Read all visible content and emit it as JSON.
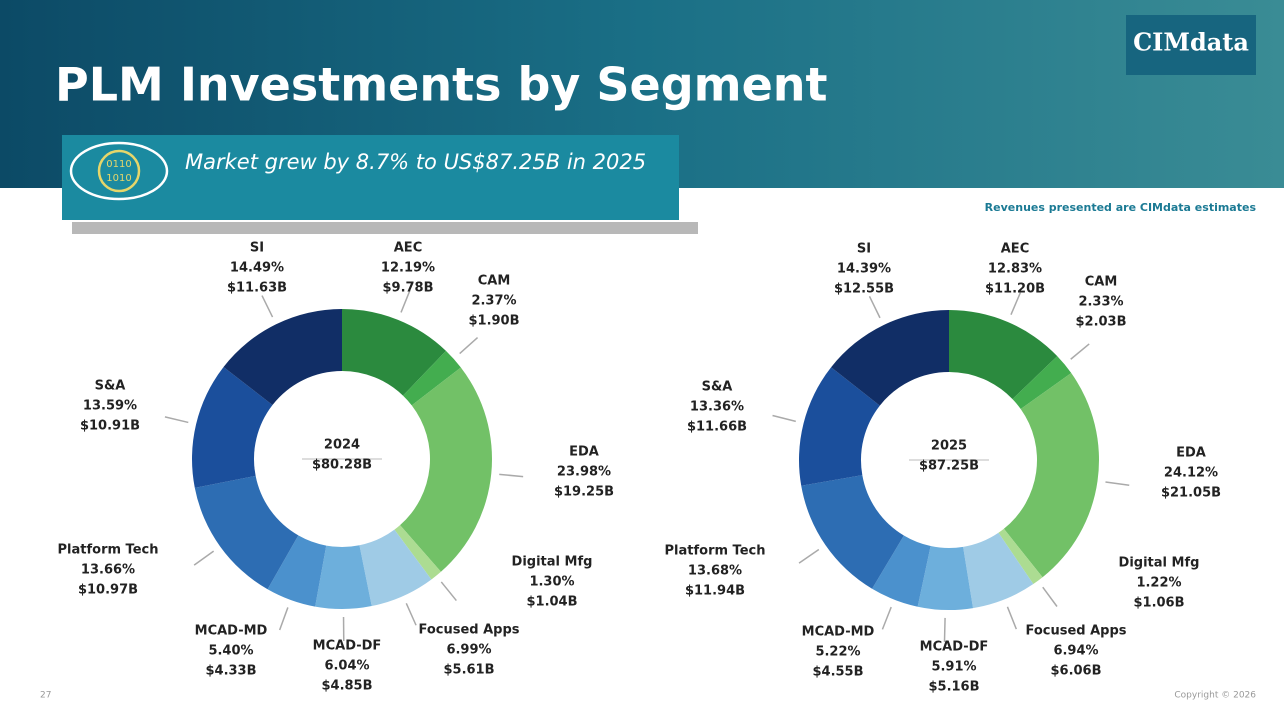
{
  "header": {
    "title": "PLM Investments by Segment",
    "banner": "Market grew by 8.7% to US$87.25B in 2025",
    "banner_icon": [
      "0110",
      "1010"
    ],
    "logo": "CIMdata",
    "note": "Revenues presented are CIMdata estimates",
    "page_number": "27",
    "copyright": "Copyright © 2026"
  },
  "chart_data": [
    {
      "type": "donut",
      "center_label": "2024",
      "total_label": "$80.28B",
      "categories": [
        "AEC",
        "CAM",
        "EDA",
        "Digital Mfg",
        "Focused Apps",
        "MCAD-DF",
        "MCAD-MD",
        "Platform Tech",
        "S&A",
        "SI"
      ],
      "values": [
        12.19,
        2.37,
        23.98,
        1.3,
        6.99,
        6.04,
        5.4,
        13.66,
        13.59,
        14.49
      ],
      "value_labels": [
        "12.19%",
        "2.37%",
        "23.98%",
        "1.30%",
        "6.99%",
        "6.04%",
        "5.40%",
        "13.66%",
        "13.59%",
        "14.49%"
      ],
      "revenues": [
        9.78,
        1.9,
        19.25,
        1.04,
        5.61,
        4.85,
        4.33,
        10.97,
        10.91,
        11.63
      ],
      "revenue_labels": [
        "$9.78B",
        "$1.90B",
        "$19.25B",
        "$1.04B",
        "$5.61B",
        "$4.85B",
        "$4.33B",
        "$10.97B",
        "$10.91B",
        "$11.63B"
      ],
      "colors": [
        "#2b8a3e",
        "#43ad4f",
        "#72c167",
        "#acdc92",
        "#9fcbe6",
        "#6dafdc",
        "#4b91cd",
        "#2d6db3",
        "#1b4f9c",
        "#112e66"
      ]
    },
    {
      "type": "donut",
      "center_label": "2025",
      "total_label": "$87.25B",
      "categories": [
        "AEC",
        "CAM",
        "EDA",
        "Digital Mfg",
        "Focused Apps",
        "MCAD-DF",
        "MCAD-MD",
        "Platform Tech",
        "S&A",
        "SI"
      ],
      "values": [
        12.83,
        2.33,
        24.12,
        1.22,
        6.94,
        5.91,
        5.22,
        13.68,
        13.36,
        14.39
      ],
      "value_labels": [
        "12.83%",
        "2.33%",
        "24.12%",
        "1.22%",
        "6.94%",
        "5.91%",
        "5.22%",
        "13.68%",
        "13.36%",
        "14.39%"
      ],
      "revenues": [
        11.2,
        2.03,
        21.05,
        1.06,
        6.06,
        5.16,
        4.55,
        11.94,
        11.66,
        12.55
      ],
      "revenue_labels": [
        "$11.20B",
        "$2.03B",
        "$21.05B",
        "$1.06B",
        "$6.06B",
        "$5.16B",
        "$4.55B",
        "$11.94B",
        "$11.66B",
        "$12.55B"
      ],
      "colors": [
        "#2b8a3e",
        "#43ad4f",
        "#72c167",
        "#acdc92",
        "#9fcbe6",
        "#6dafdc",
        "#4b91cd",
        "#2d6db3",
        "#1b4f9c",
        "#112e66"
      ]
    }
  ]
}
